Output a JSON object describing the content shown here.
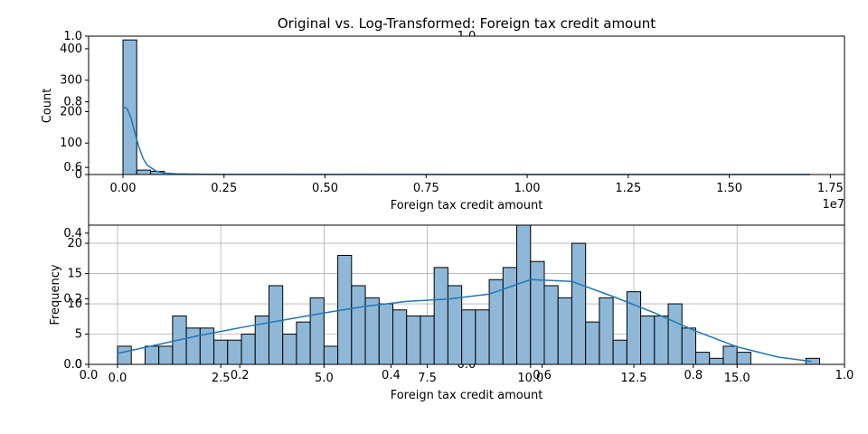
{
  "figure_title": "Original vs. Log-Transformed: Foreign tax credit amount",
  "bar_color": "#8fb8d8",
  "bar_edge_color": "#000000",
  "kde_color": "#1f77b4",
  "grid_color": "#b0b0b0",
  "chart_data": [
    {
      "type": "bar",
      "name": "original",
      "xlabel": "Foreign tax credit amount",
      "ylabel": "Count",
      "xlim": [
        -0.085,
        1.785
      ],
      "ylim": [
        0,
        440
      ],
      "x_ticks": [
        0.0,
        0.25,
        0.5,
        0.75,
        1.0,
        1.25,
        1.5,
        1.75
      ],
      "x_tick_labels": [
        "0.00",
        "0.25",
        "0.50",
        "0.75",
        "1.00",
        "1.25",
        "1.50",
        "1.75"
      ],
      "x_offset_label": "1e7",
      "y_ticks": [
        0,
        100,
        200,
        300,
        400
      ],
      "y_tick_labels": [
        "0",
        "100",
        "200",
        "300",
        "400"
      ],
      "bin_edges": [
        0.0,
        0.0341,
        0.0682,
        0.1023
      ],
      "values": [
        428,
        14,
        10,
        0
      ],
      "kde": {
        "x": [
          0.0,
          0.01,
          0.02,
          0.03,
          0.04,
          0.05,
          0.06,
          0.08,
          0.1,
          0.13,
          0.2,
          0.4,
          0.8,
          1.2,
          1.7
        ],
        "y": [
          215,
          210,
          180,
          130,
          85,
          50,
          30,
          12,
          5,
          2,
          0.5,
          0.2,
          0.1,
          0.05,
          0
        ]
      },
      "grid": false
    },
    {
      "type": "bar",
      "name": "log-transformed",
      "xlabel": "Foreign tax credit amount",
      "ylabel": "Frequency",
      "xlim": [
        -0.7,
        17.6
      ],
      "ylim": [
        0,
        23
      ],
      "x_ticks": [
        0.0,
        2.5,
        5.0,
        7.5,
        10.0,
        12.5,
        15.0
      ],
      "x_tick_labels": [
        "0.0",
        "2.5",
        "5.0",
        "7.5",
        "10.0",
        "12.5",
        "15.0"
      ],
      "y_ticks": [
        0,
        5,
        10,
        15,
        20
      ],
      "y_tick_labels": [
        "0",
        "5",
        "10",
        "15",
        "20"
      ],
      "bin_start": 0.0,
      "bin_width": 0.3333,
      "values": [
        3,
        0,
        3,
        3,
        8,
        6,
        6,
        4,
        4,
        5,
        8,
        13,
        5,
        7,
        11,
        3,
        18,
        13,
        11,
        10,
        9,
        8,
        8,
        16,
        13,
        9,
        9,
        14,
        16,
        23,
        17,
        13,
        11,
        20,
        7,
        11,
        4,
        12,
        8,
        8,
        10,
        6,
        2,
        1,
        3,
        2,
        0,
        0,
        0,
        0,
        1
      ],
      "kde": {
        "x": [
          0,
          1,
          2,
          3,
          4,
          5,
          6,
          7,
          8,
          9,
          10,
          11,
          12,
          13,
          14,
          15,
          16,
          16.8
        ],
        "y": [
          1.8,
          3.3,
          4.8,
          6.1,
          7.3,
          8.5,
          9.6,
          10.4,
          10.8,
          11.6,
          14.0,
          13.7,
          11.2,
          8.5,
          5.5,
          2.9,
          1.2,
          0.5
        ]
      },
      "grid": true
    }
  ],
  "overlay_axes": {
    "x_ticks": [
      0.0,
      0.2,
      0.4,
      0.6,
      0.8,
      1.0
    ],
    "x_tick_labels": [
      "0.0",
      "0.2",
      "0.4",
      "0.6",
      "0.8",
      "1.0"
    ],
    "y_ticks": [
      0.0,
      0.2,
      0.4,
      0.6,
      0.8,
      1.0
    ],
    "y_tick_labels": [
      "0.0",
      "0.2",
      "0.4",
      "0.6",
      "0.8",
      "1.0"
    ]
  }
}
